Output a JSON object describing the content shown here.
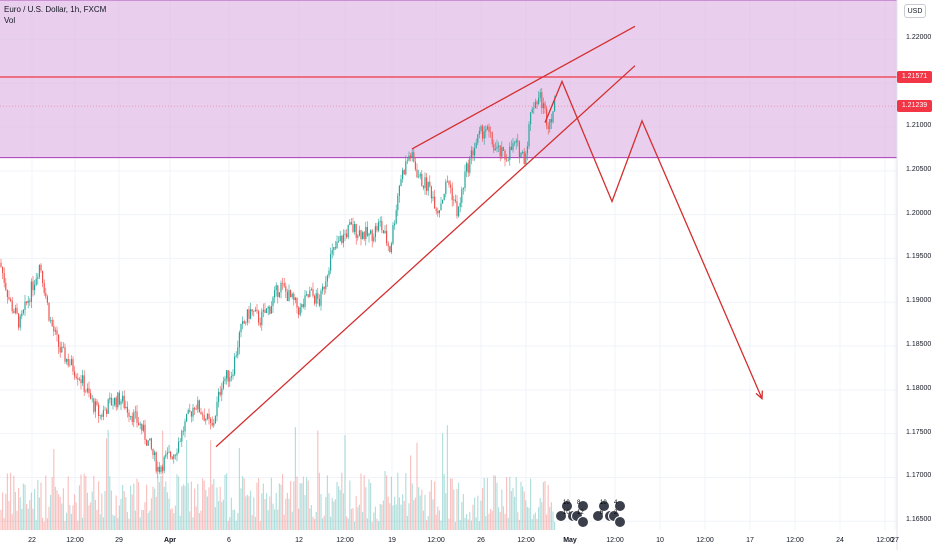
{
  "legend": {
    "symbol_line": "Euro / U.S. Dollar, 1h, FXCM",
    "volume_label": "Vol"
  },
  "currency_button": "USD",
  "price_axis": {
    "ticks": [
      "1.22000",
      "1.21500",
      "1.21000",
      "1.20500",
      "1.20000",
      "1.19500",
      "1.19000",
      "1.18500",
      "1.18000",
      "1.17500",
      "1.17000",
      "1.16500"
    ],
    "tags": [
      {
        "label": "1.21571",
        "color": "#f23645"
      },
      {
        "label": "1.21239",
        "color": "#f23645"
      }
    ]
  },
  "time_axis": {
    "ticks": [
      {
        "label": "22",
        "bold": false
      },
      {
        "label": "12:00",
        "bold": false
      },
      {
        "label": "29",
        "bold": false
      },
      {
        "label": "Apr",
        "bold": true
      },
      {
        "label": "6",
        "bold": false
      },
      {
        "label": "12",
        "bold": false
      },
      {
        "label": "12:00",
        "bold": false
      },
      {
        "label": "19",
        "bold": false
      },
      {
        "label": "12:00",
        "bold": false
      },
      {
        "label": "26",
        "bold": false
      },
      {
        "label": "12:00",
        "bold": false
      },
      {
        "label": "May",
        "bold": true
      },
      {
        "label": "12:00",
        "bold": false
      },
      {
        "label": "10",
        "bold": false
      },
      {
        "label": "12:00",
        "bold": false
      },
      {
        "label": "17",
        "bold": false
      },
      {
        "label": "12:00",
        "bold": false
      },
      {
        "label": "24",
        "bold": false
      },
      {
        "label": "12:00",
        "bold": false
      },
      {
        "label": "27",
        "bold": false
      }
    ]
  },
  "event_markers": [
    {
      "counts": [
        "10",
        "8",
        "10",
        "12"
      ]
    },
    {
      "counts": [
        "10",
        "4",
        "6",
        "2"
      ]
    }
  ],
  "colors": {
    "zone_fill": "#e1bee7",
    "zone_border": "#9c27b0",
    "drawing_line": "#d32f2f",
    "horizontal_level": "#f23645",
    "candle_up": "#26a69a",
    "candle_down": "#ef5350"
  },
  "chart_data": {
    "type": "candlestick",
    "title": "Euro / U.S. Dollar, 1h, FXCM",
    "ylim": [
      1.164,
      1.2245
    ],
    "resistance_zone": [
      1.2065,
      1.2245
    ],
    "horizontal_level": 1.21571,
    "last_price": 1.21239,
    "close_path": [
      [
        0,
        1.1945
      ],
      [
        10,
        1.19
      ],
      [
        20,
        1.1875
      ],
      [
        30,
        1.191
      ],
      [
        40,
        1.1945
      ],
      [
        50,
        1.188
      ],
      [
        60,
        1.1845
      ],
      [
        70,
        1.183
      ],
      [
        80,
        1.1815
      ],
      [
        90,
        1.179
      ],
      [
        100,
        1.177
      ],
      [
        110,
        1.1785
      ],
      [
        120,
        1.179
      ],
      [
        130,
        1.1775
      ],
      [
        140,
        1.176
      ],
      [
        150,
        1.1735
      ],
      [
        158,
        1.171
      ],
      [
        165,
        1.172
      ],
      [
        175,
        1.173
      ],
      [
        185,
        1.176
      ],
      [
        195,
        1.1785
      ],
      [
        205,
        1.177
      ],
      [
        212,
        1.1755
      ],
      [
        222,
        1.181
      ],
      [
        232,
        1.182
      ],
      [
        240,
        1.1865
      ],
      [
        250,
        1.189
      ],
      [
        260,
        1.188
      ],
      [
        270,
        1.1895
      ],
      [
        280,
        1.192
      ],
      [
        290,
        1.1905
      ],
      [
        300,
        1.189
      ],
      [
        310,
        1.191
      ],
      [
        320,
        1.19
      ],
      [
        330,
        1.195
      ],
      [
        340,
        1.197
      ],
      [
        350,
        1.1985
      ],
      [
        360,
        1.198
      ],
      [
        370,
        1.1975
      ],
      [
        380,
        1.199
      ],
      [
        390,
        1.196
      ],
      [
        400,
        1.204
      ],
      [
        410,
        1.207
      ],
      [
        420,
        1.204
      ],
      [
        430,
        1.203
      ],
      [
        438,
        1.2005
      ],
      [
        448,
        1.204
      ],
      [
        458,
        1.2
      ],
      [
        465,
        1.2045
      ],
      [
        475,
        1.208
      ],
      [
        485,
        1.21
      ],
      [
        495,
        1.2075
      ],
      [
        505,
        1.2065
      ],
      [
        515,
        1.208
      ],
      [
        525,
        1.2065
      ],
      [
        532,
        1.2125
      ],
      [
        540,
        1.2135
      ],
      [
        548,
        1.2105
      ],
      [
        555,
        1.2124
      ]
    ],
    "drawings": [
      {
        "kind": "trendline",
        "points": [
          [
            216,
            1.1735
          ],
          [
            635,
            1.217
          ]
        ]
      },
      {
        "kind": "trendline",
        "points": [
          [
            412,
            1.2075
          ],
          [
            635,
            1.2215
          ]
        ]
      },
      {
        "kind": "projection_path",
        "points": [
          [
            545,
            1.2105
          ],
          [
            562,
            1.2152
          ],
          [
            612,
            1.2015
          ],
          [
            642,
            1.2107
          ],
          [
            762,
            1.179
          ]
        ]
      }
    ]
  }
}
